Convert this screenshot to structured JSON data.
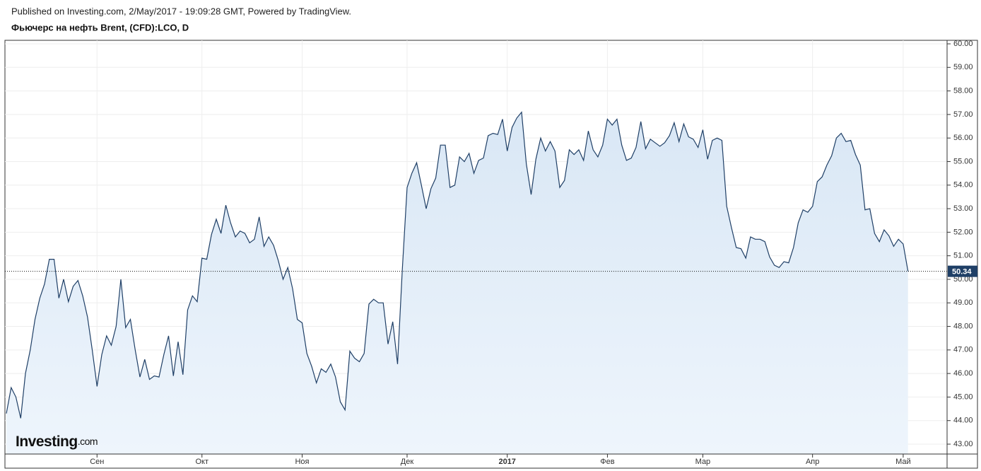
{
  "header": "Published on Investing.com, 2/May/2017 - 19:09:28 GMT, Powered by TradingView.",
  "logo": {
    "name": "Investing",
    "suffix": ".com"
  },
  "chart_data": {
    "type": "area",
    "title": "Фьючерс на нефть Brent, (CFD):LCO, D",
    "color": "#1f3f66",
    "values": [
      44.3,
      45.4,
      45.0,
      44.1,
      46.0,
      47.0,
      48.3,
      49.2,
      49.8,
      50.85,
      50.85,
      49.2,
      50.0,
      49.05,
      49.7,
      49.95,
      49.3,
      48.4,
      47.0,
      45.45,
      46.8,
      47.6,
      47.2,
      48.0,
      50.0,
      47.95,
      48.3,
      47.0,
      45.85,
      46.6,
      45.75,
      45.9,
      45.85,
      46.8,
      47.6,
      45.9,
      47.35,
      45.95,
      48.7,
      49.3,
      49.05,
      50.9,
      50.85,
      51.9,
      52.55,
      51.95,
      53.15,
      52.4,
      51.8,
      52.05,
      51.95,
      51.55,
      51.7,
      52.65,
      51.4,
      51.8,
      51.45,
      50.8,
      50.0,
      50.5,
      49.6,
      48.3,
      48.15,
      46.85,
      46.3,
      45.6,
      46.2,
      46.05,
      46.4,
      45.85,
      44.8,
      44.45,
      46.95,
      46.65,
      46.5,
      46.85,
      48.95,
      49.15,
      49.0,
      49.0,
      47.25,
      48.2,
      46.4,
      50.4,
      53.9,
      54.5,
      54.95,
      54.0,
      53.0,
      53.85,
      54.3,
      55.7,
      55.7,
      53.9,
      54.0,
      55.2,
      55.0,
      55.35,
      54.5,
      55.05,
      55.15,
      56.1,
      56.2,
      56.15,
      56.8,
      55.45,
      56.45,
      56.85,
      57.1,
      54.9,
      53.6,
      55.1,
      56.0,
      55.45,
      55.85,
      55.45,
      53.9,
      54.2,
      55.5,
      55.3,
      55.5,
      55.05,
      56.3,
      55.5,
      55.2,
      55.7,
      56.8,
      56.55,
      56.8,
      55.7,
      55.05,
      55.15,
      55.6,
      56.7,
      55.55,
      55.95,
      55.8,
      55.65,
      55.8,
      56.1,
      56.65,
      55.85,
      56.6,
      56.05,
      55.95,
      55.6,
      56.35,
      55.1,
      55.9,
      56.0,
      55.9,
      53.1,
      52.2,
      51.35,
      51.3,
      50.9,
      51.8,
      51.7,
      51.7,
      51.6,
      50.95,
      50.6,
      50.5,
      50.75,
      50.7,
      51.35,
      52.4,
      52.95,
      52.85,
      53.1,
      54.15,
      54.35,
      54.85,
      55.25,
      56.0,
      56.2,
      55.85,
      55.9,
      55.3,
      54.85,
      52.95,
      53.0,
      51.95,
      51.6,
      52.1,
      51.85,
      51.4,
      51.7,
      51.5,
      50.34
    ],
    "xlim": [
      -0.3,
      197.2
    ],
    "xticks": [
      {
        "value": 19,
        "label": "Сен"
      },
      {
        "value": 41,
        "label": "Окт"
      },
      {
        "value": 62,
        "label": "Ноя"
      },
      {
        "value": 84,
        "label": "Дек"
      },
      {
        "value": 105,
        "label": "2017"
      },
      {
        "value": 126,
        "label": "Фев"
      },
      {
        "value": 146,
        "label": "Мар"
      },
      {
        "value": 169,
        "label": "Апр"
      },
      {
        "value": 188,
        "label": "Май"
      }
    ],
    "ylim": [
      42.58,
      60.15
    ],
    "yticks": [
      {
        "value": 43,
        "label": "43.00"
      },
      {
        "value": 44,
        "label": "44.00"
      },
      {
        "value": 45,
        "label": "45.00"
      },
      {
        "value": 46,
        "label": "46.00"
      },
      {
        "value": 47,
        "label": "47.00"
      },
      {
        "value": 48,
        "label": "48.00"
      },
      {
        "value": 49,
        "label": "49.00"
      },
      {
        "value": 50,
        "label": "50.00"
      },
      {
        "value": 51,
        "label": "51.00"
      },
      {
        "value": 52,
        "label": "52.00"
      },
      {
        "value": 53,
        "label": "53.00"
      },
      {
        "value": 54,
        "label": "54.00"
      },
      {
        "value": 55,
        "label": "55.00"
      },
      {
        "value": 56,
        "label": "56.00"
      },
      {
        "value": 57,
        "label": "57.00"
      },
      {
        "value": 58,
        "label": "58.00"
      },
      {
        "value": 59,
        "label": "59.00"
      },
      {
        "value": 60,
        "label": "60.00"
      }
    ],
    "grid": true
  }
}
